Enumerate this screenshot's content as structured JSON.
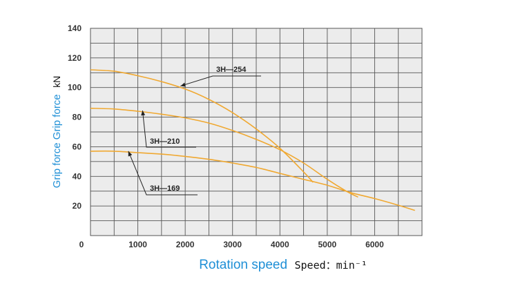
{
  "chart_data": {
    "type": "line",
    "xlim": [
      0,
      7000
    ],
    "ylim": [
      0,
      140
    ],
    "x_ticks": [
      0,
      1000,
      2000,
      3000,
      4000,
      5000,
      6000
    ],
    "y_ticks": [
      20,
      40,
      60,
      80,
      100,
      120,
      140
    ],
    "x_tick_labels": [
      "0",
      "1000",
      "2000",
      "3000",
      "4000",
      "5000",
      "6000"
    ],
    "y_tick_labels": [
      "20",
      "40",
      "60",
      "80",
      "100",
      "120",
      "140"
    ],
    "grid": true,
    "xlabel_colored": "Rotation speed",
    "xlabel_plain": "Speed：min⁻¹",
    "ylabel_colored": "Grip force Grip force",
    "ylabel_plain": "kN",
    "series_color": "#f0a830",
    "grid_color": "#555555",
    "plot_bg": "#ececec",
    "series": [
      {
        "name": "3H—254",
        "points": [
          [
            0,
            112
          ],
          [
            500,
            111
          ],
          [
            1000,
            108
          ],
          [
            1500,
            104
          ],
          [
            2000,
            99
          ],
          [
            2500,
            92
          ],
          [
            3000,
            83
          ],
          [
            3500,
            72
          ],
          [
            4000,
            59
          ],
          [
            4500,
            43
          ],
          [
            4700,
            36
          ]
        ]
      },
      {
        "name": "3H—210",
        "points": [
          [
            0,
            86
          ],
          [
            500,
            85.5
          ],
          [
            1000,
            84
          ],
          [
            1500,
            82
          ],
          [
            2000,
            79.5
          ],
          [
            2500,
            76
          ],
          [
            3000,
            71
          ],
          [
            3500,
            65
          ],
          [
            4000,
            58
          ],
          [
            4500,
            49
          ],
          [
            5000,
            38
          ],
          [
            5400,
            30
          ],
          [
            5650,
            26
          ]
        ]
      },
      {
        "name": "3H—169",
        "points": [
          [
            0,
            57
          ],
          [
            500,
            57
          ],
          [
            1000,
            56
          ],
          [
            1500,
            55
          ],
          [
            2000,
            53.5
          ],
          [
            2500,
            51.5
          ],
          [
            3000,
            49
          ],
          [
            3500,
            46
          ],
          [
            4000,
            42
          ],
          [
            4500,
            38
          ],
          [
            5000,
            34
          ],
          [
            5500,
            29
          ],
          [
            6000,
            25
          ],
          [
            6500,
            20.5
          ],
          [
            6850,
            17
          ]
        ]
      }
    ],
    "callouts": [
      {
        "label": "3H—254",
        "target": [
          1900,
          101
        ]
      },
      {
        "label": "3H—210",
        "target": [
          1100,
          84.5
        ]
      },
      {
        "label": "3H—169",
        "target": [
          800,
          57
        ]
      }
    ]
  }
}
